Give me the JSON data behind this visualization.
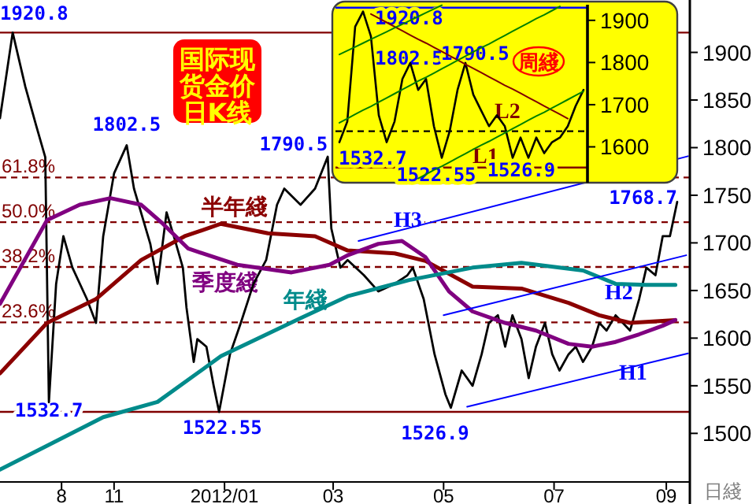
{
  "chart_data": [
    {
      "type": "line",
      "title": "国际现货金价日K线",
      "xlabel": "日綫",
      "legend": false,
      "xlim": [
        "2011-08-30",
        "2012-09-14"
      ],
      "ylim": [
        1449,
        1955
      ],
      "xticks": [
        {
          "value": "2011-10-03",
          "label": "8"
        },
        {
          "value": "2011-11-01",
          "label": "11"
        },
        {
          "value": "2012-01-01",
          "label": "2012/01"
        },
        {
          "value": "2012-03-01",
          "label": "03"
        },
        {
          "value": "2012-05-01",
          "label": "05"
        },
        {
          "value": "2012-07-01",
          "label": "07"
        },
        {
          "value": "2012-09-01",
          "label": "09"
        }
      ],
      "yticks": [
        1500,
        1550,
        1600,
        1650,
        1700,
        1750,
        1800,
        1850,
        1900
      ],
      "ref_lines": [
        {
          "axis": "y",
          "value": 1920.8,
          "color": "#800000",
          "line_style": "solid"
        },
        {
          "axis": "y",
          "value": 1768.7,
          "color": "#800000",
          "line_style": "dashed"
        },
        {
          "axis": "y",
          "value": 1721.7,
          "color": "#800000",
          "line_style": "dashed"
        },
        {
          "axis": "y",
          "value": 1674.7,
          "color": "#800000",
          "line_style": "dashed"
        },
        {
          "axis": "y",
          "value": 1616.5,
          "color": "#800000",
          "line_style": "dashed"
        },
        {
          "axis": "y",
          "value": 1522.55,
          "color": "#800000",
          "line_style": "solid"
        }
      ],
      "annotations": [
        {
          "text": "1920.8",
          "x": "2011-09-06",
          "y": 1920.8
        },
        {
          "text": "1802.5",
          "x": "2011-11-08",
          "y": 1802.5
        },
        {
          "text": "1790.5",
          "x": "2012-02-27",
          "y": 1790.5
        },
        {
          "text": "1532.7",
          "x": "2011-09-26",
          "y": 1532.7
        },
        {
          "text": "1522.55",
          "x": "2011-12-29",
          "y": 1522.55
        },
        {
          "text": "1526.9",
          "x": "2012-05-05",
          "y": 1526.9
        },
        {
          "text": "1768.7",
          "x": "2012-09-07",
          "y": 1768.7
        },
        {
          "text": "61.8%",
          "x": "2011-08-30",
          "y": 1768.7
        },
        {
          "text": "50.0%",
          "x": "2011-08-30",
          "y": 1721.7
        },
        {
          "text": "38.2%",
          "x": "2011-08-30",
          "y": 1674.7
        },
        {
          "text": "23.6%",
          "x": "2011-08-30",
          "y": 1616.5
        }
      ],
      "series": [
        {
          "color": "#000000",
          "x": [
            "2011-08-30",
            "2011-09-06",
            "2011-09-13",
            "2011-09-19",
            "2011-09-24",
            "2011-09-26",
            "2011-09-30",
            "2011-10-04",
            "2011-10-09",
            "2011-10-17",
            "2011-10-22",
            "2011-10-26",
            "2011-11-01",
            "2011-11-08",
            "2011-11-12",
            "2011-11-21",
            "2011-11-25",
            "2011-11-30",
            "2011-12-04",
            "2011-12-09",
            "2011-12-11",
            "2011-12-15",
            "2011-12-17",
            "2011-12-22",
            "2011-12-26",
            "2011-12-29",
            "2012-01-04",
            "2012-01-10",
            "2012-01-17",
            "2012-01-24",
            "2012-01-30",
            "2012-02-03",
            "2012-02-12",
            "2012-02-20",
            "2012-02-27",
            "2012-02-29",
            "2012-03-05",
            "2012-03-09",
            "2012-03-18",
            "2012-03-26",
            "2012-04-04",
            "2012-04-11",
            "2012-04-14",
            "2012-04-20",
            "2012-04-26",
            "2012-05-02",
            "2012-05-05",
            "2012-05-11",
            "2012-05-17",
            "2012-05-22",
            "2012-05-26",
            "2012-05-31",
            "2012-06-04",
            "2012-06-08",
            "2012-06-13",
            "2012-06-17",
            "2012-06-21",
            "2012-06-26",
            "2012-06-30",
            "2012-07-04",
            "2012-07-09",
            "2012-07-13",
            "2012-07-17",
            "2012-07-22",
            "2012-07-26",
            "2012-07-30",
            "2012-08-04",
            "2012-08-08",
            "2012-08-12",
            "2012-08-17",
            "2012-08-21",
            "2012-08-26",
            "2012-08-30",
            "2012-09-03",
            "2012-09-07"
          ],
          "values": [
            1831,
            1920.8,
            1864,
            1823,
            1790,
            1532.7,
            1657,
            1707,
            1674,
            1641,
            1616,
            1707,
            1773,
            1802.5,
            1757,
            1699,
            1657,
            1732,
            1707,
            1674,
            1632,
            1575,
            1599,
            1591,
            1550,
            1522.55,
            1583,
            1616,
            1657,
            1682,
            1740,
            1757,
            1740,
            1757,
            1790.5,
            1715,
            1674,
            1682,
            1666,
            1649,
            1657,
            1666,
            1674,
            1641,
            1583,
            1541,
            1526.9,
            1566,
            1550,
            1583,
            1616,
            1624,
            1591,
            1624,
            1599,
            1558,
            1591,
            1616,
            1583,
            1566,
            1583,
            1591,
            1575,
            1591,
            1616,
            1608,
            1624,
            1616,
            1608,
            1641,
            1674,
            1666,
            1707,
            1707,
            1743
          ]
        },
        {
          "name": "半年綫",
          "color": "#8b0000",
          "x": [
            "2011-08-30",
            "2011-09-25",
            "2011-10-22",
            "2011-11-16",
            "2011-12-10",
            "2011-12-30",
            "2012-01-25",
            "2012-02-20",
            "2012-03-09",
            "2012-04-04",
            "2012-04-21",
            "2012-05-17",
            "2012-06-13",
            "2012-07-09",
            "2012-07-26",
            "2012-08-12",
            "2012-09-06"
          ],
          "values": [
            1563,
            1616,
            1641,
            1682,
            1707,
            1720,
            1710,
            1707,
            1692,
            1689,
            1681,
            1654,
            1652,
            1637,
            1624,
            1616,
            1619
          ]
        },
        {
          "name": "季度綫",
          "color": "#800080",
          "x": [
            "2011-08-30",
            "2011-09-25",
            "2011-10-13",
            "2011-10-30",
            "2011-11-16",
            "2011-11-28",
            "2011-12-12",
            "2012-01-08",
            "2012-02-07",
            "2012-02-28",
            "2012-03-09",
            "2012-03-26",
            "2012-04-08",
            "2012-04-21",
            "2012-05-04",
            "2012-05-17",
            "2012-06-04",
            "2012-06-21",
            "2012-07-09",
            "2012-07-22",
            "2012-08-04",
            "2012-08-17",
            "2012-08-30",
            "2012-09-06"
          ],
          "values": [
            1636,
            1724,
            1740,
            1747,
            1740,
            1720,
            1694,
            1677,
            1669,
            1677,
            1687,
            1699,
            1702,
            1685,
            1649,
            1628,
            1616,
            1608,
            1594,
            1591,
            1596,
            1604,
            1613,
            1619
          ]
        },
        {
          "name": "年綫",
          "color": "#008b8b",
          "x": [
            "2011-08-30",
            "2011-09-25",
            "2011-10-26",
            "2011-11-25",
            "2011-12-30",
            "2012-02-12",
            "2012-03-09",
            "2012-04-12",
            "2012-05-17",
            "2012-06-13",
            "2012-07-17",
            "2012-08-04",
            "2012-08-21",
            "2012-09-06"
          ],
          "values": [
            1462,
            1487,
            1517,
            1533,
            1581,
            1621,
            1644,
            1661,
            1674,
            1679,
            1671,
            1657,
            1656,
            1656
          ]
        },
        {
          "name": "H1",
          "color": "#0000ff",
          "x": [
            "2012-05-14",
            "2012-09-13"
          ],
          "values": [
            1528,
            1584
          ]
        },
        {
          "name": "H2",
          "color": "#0000ff",
          "x": [
            "2012-05-01",
            "2012-09-12"
          ],
          "values": [
            1624,
            1687
          ]
        },
        {
          "name": "H3",
          "color": "#0000ff",
          "x": [
            "2012-03-15",
            "2012-09-13"
          ],
          "values": [
            1702,
            1791
          ]
        }
      ]
    },
    {
      "type": "line",
      "title": "周綫",
      "tick_labels": "y",
      "categories": [
        null,
        null,
        null,
        null,
        null,
        null,
        null,
        null,
        null,
        null,
        null,
        null,
        null,
        null,
        null,
        null,
        null,
        null,
        null,
        null,
        null,
        null,
        null,
        null,
        null,
        null,
        null,
        null,
        null,
        null,
        null,
        null
      ],
      "ylim": [
        1515,
        1937
      ],
      "yticks": [
        1600,
        1700,
        1800,
        1900
      ],
      "ref_lines": [
        {
          "axis": "y",
          "value": 1930,
          "color": "#0000ff",
          "line_style": "solid"
        },
        {
          "axis": "y",
          "value": 1637,
          "color": "#000000",
          "line_style": "dashed"
        },
        {
          "axis": "y",
          "value": 1551,
          "label": "L1",
          "color": "#800000",
          "line_style": "solid"
        }
      ],
      "annotations": [
        {
          "text": "1920.8",
          "y": 1920.8
        },
        {
          "text": "1802.5",
          "y": 1802.5
        },
        {
          "text": "1790.5",
          "y": 1790.5
        },
        {
          "text": "1532.7",
          "y": 1532.7
        },
        {
          "text": "1522.55",
          "y": 1522.55
        },
        {
          "text": "1526.9",
          "y": 1526.9
        }
      ],
      "series": [
        {
          "color": "#000000",
          "values": [
            1611,
            1660,
            1885,
            1920.8,
            1862,
            1675,
            1611,
            1660,
            1761,
            1799,
            1735,
            1761,
            1649,
            1574,
            1637,
            1735,
            1799,
            1724,
            1686,
            1649,
            1675,
            1649,
            1574,
            1622,
            1574,
            1622,
            1585,
            1611,
            1622,
            1649,
            1697,
            1735
          ]
        },
        {
          "name": "L2",
          "color": "#800000",
          "values": [
            null,
            null,
            null,
            null,
            1915,
            1905,
            1895,
            1885,
            1875,
            1865,
            1855,
            1846,
            1836,
            1826,
            1816,
            1806,
            1796,
            1786,
            1776,
            1766,
            1756,
            1746,
            1737,
            1727,
            1717,
            1707,
            1697,
            1687,
            1677,
            1667,
            null,
            null
          ]
        },
        {
          "color": "#008000",
          "values": [
            1819,
            1828,
            1837,
            1846,
            1855,
            1864,
            1873,
            1882,
            1891,
            1900,
            1909,
            1918,
            1927,
            1936,
            null,
            null,
            null,
            null,
            null,
            null,
            null,
            null,
            null,
            null,
            null,
            null,
            null,
            null,
            null,
            null,
            null,
            null
          ]
        },
        {
          "color": "#008000",
          "values": [
            1657,
            1667,
            1677,
            1687,
            1696,
            1706,
            1716,
            1726,
            1736,
            1746,
            1756,
            1765,
            1775,
            1785,
            1795,
            1805,
            1815,
            1825,
            1835,
            1844,
            1854,
            1864,
            1874,
            1884,
            1894,
            1904,
            1913,
            1923,
            1933,
            null,
            null,
            null
          ]
        },
        {
          "color": "#008000",
          "values": [
            null,
            null,
            null,
            null,
            null,
            null,
            null,
            null,
            null,
            null,
            1525,
            1535,
            1545,
            1554,
            1564,
            1574,
            1584,
            1594,
            1604,
            1613,
            1623,
            1633,
            1643,
            1653,
            1663,
            1673,
            1682,
            1692,
            1702,
            1712,
            1722,
            1732
          ]
        }
      ]
    }
  ]
}
